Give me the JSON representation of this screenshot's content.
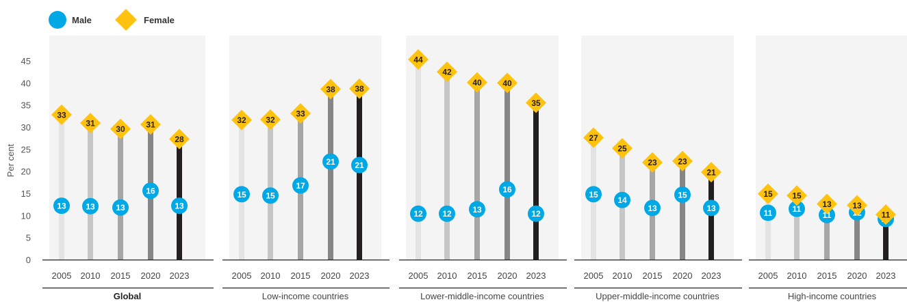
{
  "chart_data": {
    "type": "scatter",
    "ylabel": "Per cent",
    "ylim": [
      0,
      45
    ],
    "yticks": [
      0,
      5,
      10,
      15,
      20,
      25,
      30,
      35,
      40,
      45
    ],
    "grid": false,
    "legend_position": "top-left",
    "series": [
      {
        "name": "Male",
        "color": "#00a9e6",
        "marker": "circle"
      },
      {
        "name": "Female",
        "color": "#ffc20e",
        "marker": "diamond"
      }
    ],
    "bar_colors": [
      "#e3e3e3",
      "#c6c6c6",
      "#a6a6a6",
      "#868686",
      "#231f20"
    ],
    "groups": [
      {
        "name": "Global",
        "bold": true,
        "years": [
          "2005",
          "2010",
          "2015",
          "2020",
          "2023"
        ],
        "male": [
          13,
          13,
          13,
          16,
          13
        ],
        "female": [
          33,
          31,
          30,
          31,
          28
        ],
        "male_pos": [
          12.2,
          12.1,
          11.8,
          15.6,
          12.2
        ],
        "female_pos": [
          32.8,
          30.9,
          29.6,
          30.6,
          27.3
        ]
      },
      {
        "name": "Low-income countries",
        "bold": false,
        "years": [
          "2005",
          "2010",
          "2015",
          "2020",
          "2023"
        ],
        "male": [
          15,
          15,
          17,
          21,
          21
        ],
        "female": [
          32,
          32,
          33,
          38,
          38
        ],
        "male_pos": [
          14.8,
          14.5,
          16.8,
          22.2,
          21.4
        ],
        "female_pos": [
          31.6,
          31.7,
          33.1,
          38.6,
          38.7
        ]
      },
      {
        "name": "Lower-middle-income countries",
        "bold": false,
        "years": [
          "2005",
          "2010",
          "2015",
          "2020",
          "2023"
        ],
        "male": [
          12,
          12,
          13,
          16,
          12
        ],
        "female": [
          44,
          42,
          40,
          40,
          35
        ],
        "male_pos": [
          10.4,
          10.4,
          11.4,
          15.9,
          10.4
        ],
        "female_pos": [
          45.3,
          42.5,
          40.1,
          40.0,
          35.5
        ]
      },
      {
        "name": "Upper-middle-income countries",
        "bold": false,
        "years": [
          "2005",
          "2010",
          "2015",
          "2020",
          "2023"
        ],
        "male": [
          15,
          14,
          13,
          15,
          13
        ],
        "female": [
          27,
          25,
          23,
          23,
          21
        ],
        "male_pos": [
          14.8,
          13.5,
          11.7,
          14.7,
          11.7
        ],
        "female_pos": [
          27.6,
          25.2,
          22.0,
          22.3,
          19.8
        ]
      },
      {
        "name": "High-income countries",
        "bold": false,
        "years": [
          "2005",
          "2010",
          "2015",
          "2020",
          "2023"
        ],
        "male": [
          11,
          11,
          11,
          12,
          10
        ],
        "female": [
          15,
          15,
          13,
          13,
          11
        ],
        "male_pos": [
          10.6,
          11.5,
          10.1,
          10.7,
          9.2
        ],
        "female_pos": [
          14.9,
          14.5,
          12.6,
          12.3,
          10.2
        ]
      }
    ]
  }
}
